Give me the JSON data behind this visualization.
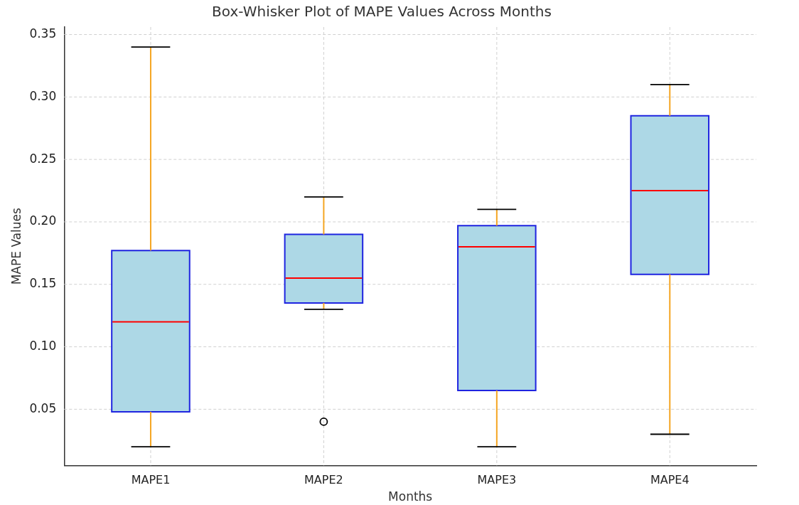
{
  "chart_data": {
    "type": "box",
    "title": "Box-Whisker Plot of MAPE Values Across Months",
    "xlabel": "Months",
    "ylabel": "MAPE Values",
    "categories": [
      "MAPE1",
      "MAPE2",
      "MAPE3",
      "MAPE4"
    ],
    "color": "#add8e6",
    "boxes": [
      {
        "low": 0.02,
        "q1": 0.048,
        "median": 0.12,
        "q3": 0.177,
        "high": 0.34
      },
      {
        "low": 0.13,
        "q1": 0.135,
        "median": 0.155,
        "q3": 0.19,
        "high": 0.22,
        "outliers": [
          0.04
        ]
      },
      {
        "low": 0.02,
        "q1": 0.065,
        "median": 0.18,
        "q3": 0.197,
        "high": 0.21
      },
      {
        "low": 0.03,
        "q1": 0.158,
        "median": 0.225,
        "q3": 0.285,
        "high": 0.31
      }
    ],
    "ylim": [
      0.005,
      0.356
    ],
    "yticks": [
      {
        "value": 0.05,
        "label": "0.05"
      },
      {
        "value": 0.1,
        "label": "0.10"
      },
      {
        "value": 0.15,
        "label": "0.15"
      },
      {
        "value": 0.2,
        "label": "0.20"
      },
      {
        "value": 0.25,
        "label": "0.25"
      },
      {
        "value": 0.3,
        "label": "0.30"
      },
      {
        "value": 0.35,
        "label": "0.35"
      }
    ],
    "grid": true
  }
}
